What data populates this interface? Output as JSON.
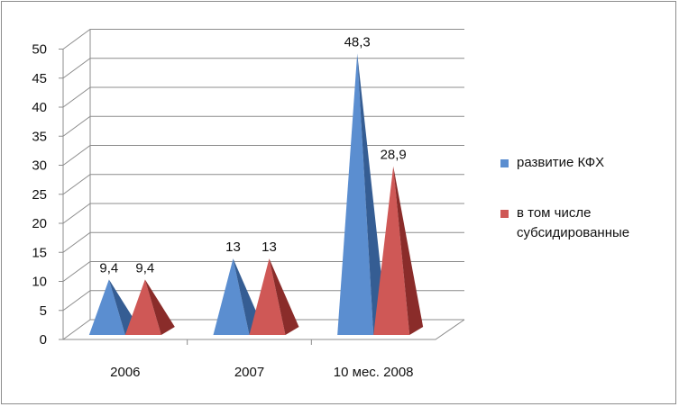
{
  "colors": {
    "series1_front": "#5b8ed0",
    "series1_side": "#355d93",
    "series2_front": "#cf5856",
    "series2_side": "#8a2c2a",
    "grid": "#8c8c8c"
  },
  "chart_data": {
    "type": "bar",
    "shape": "3d-pyramid",
    "categories": [
      "2006",
      "2007",
      "10 мес. 2008"
    ],
    "series": [
      {
        "name": "развитие  КФХ",
        "values": [
          9.4,
          13,
          48.3
        ],
        "labels": [
          "9,4",
          "13",
          "48,3"
        ]
      },
      {
        "name": "в том числе субсидированные",
        "values": [
          9.4,
          13,
          28.9
        ],
        "labels": [
          "9,4",
          "13",
          "28,9"
        ]
      }
    ],
    "yticks": [
      "0",
      "5",
      "10",
      "15",
      "20",
      "25",
      "30",
      "35",
      "40",
      "45",
      "50"
    ],
    "ylim": [
      0,
      50
    ],
    "grid": true,
    "legend_position": "right"
  },
  "legend": {
    "item1_label": "развитие  КФХ",
    "item2_line1": "в том числе",
    "item2_line2": "субсидированные"
  }
}
